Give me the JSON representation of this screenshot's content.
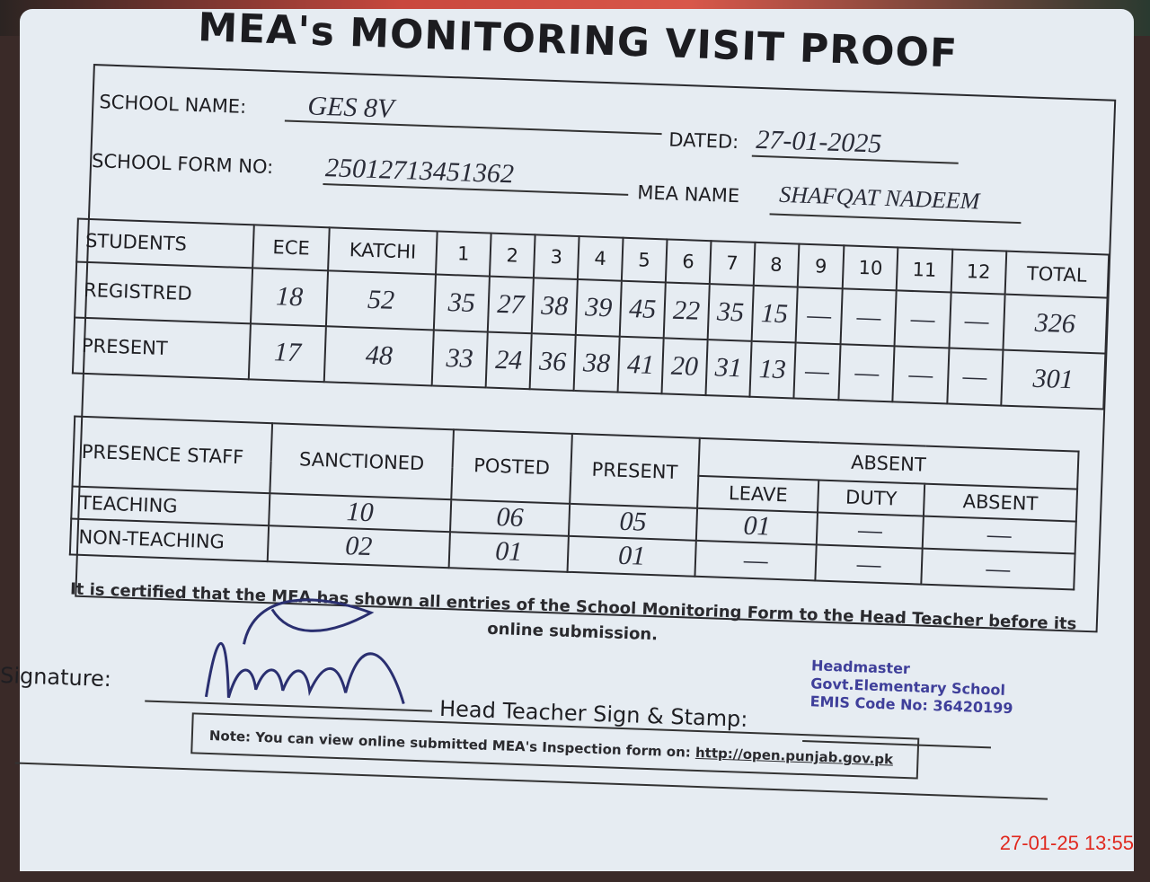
{
  "title": "MEA's MONITORING VISIT PROOF",
  "header": {
    "school_name_label": "SCHOOL NAME:",
    "school_name": "GES 8V",
    "dated_label": "DATED:",
    "dated": "27-01-2025",
    "form_no_label": "SCHOOL FORM NO:",
    "form_no": "25012713451362",
    "mea_name_label": "MEA NAME",
    "mea_name": "SHAFQAT NADEEM"
  },
  "students": {
    "columns": [
      "STUDENTS",
      "ECE",
      "KATCHI",
      "1",
      "2",
      "3",
      "4",
      "5",
      "6",
      "7",
      "8",
      "9",
      "10",
      "11",
      "12",
      "TOTAL"
    ],
    "rows": [
      [
        "REGISTRED",
        "18",
        "52",
        "35",
        "27",
        "38",
        "39",
        "45",
        "22",
        "35",
        "15",
        "—",
        "—",
        "—",
        "—",
        "326"
      ],
      [
        "PRESENT",
        "17",
        "48",
        "33",
        "24",
        "36",
        "38",
        "41",
        "20",
        "31",
        "13",
        "—",
        "—",
        "—",
        "—",
        "301"
      ]
    ]
  },
  "staff": {
    "header": [
      "PRESENCE STAFF",
      "SANCTIONED",
      "POSTED",
      "PRESENT",
      "ABSENT"
    ],
    "absent_sub": [
      "LEAVE",
      "DUTY",
      "ABSENT"
    ],
    "rows": [
      [
        "TEACHING",
        "10",
        "06",
        "05",
        "01",
        "—",
        "—"
      ],
      [
        "NON-TEACHING",
        "02",
        "01",
        "01",
        "—",
        "—",
        "—"
      ]
    ]
  },
  "certification": "It is certified that the MEA has shown all entries of the School Monitoring Form to the Head Teacher before its online submission.",
  "signature_label": "Signature:",
  "head_teacher_label": "Head Teacher Sign & Stamp:",
  "stamp": [
    "Headmaster",
    "Govt.Elementary School",
    "EMIS Code No: 36420199"
  ],
  "note": "Note: You can view online submitted MEA's Inspection form on:",
  "note_link": "http://open.punjab.gov.pk",
  "timestamp": "27-01-25  13:55"
}
